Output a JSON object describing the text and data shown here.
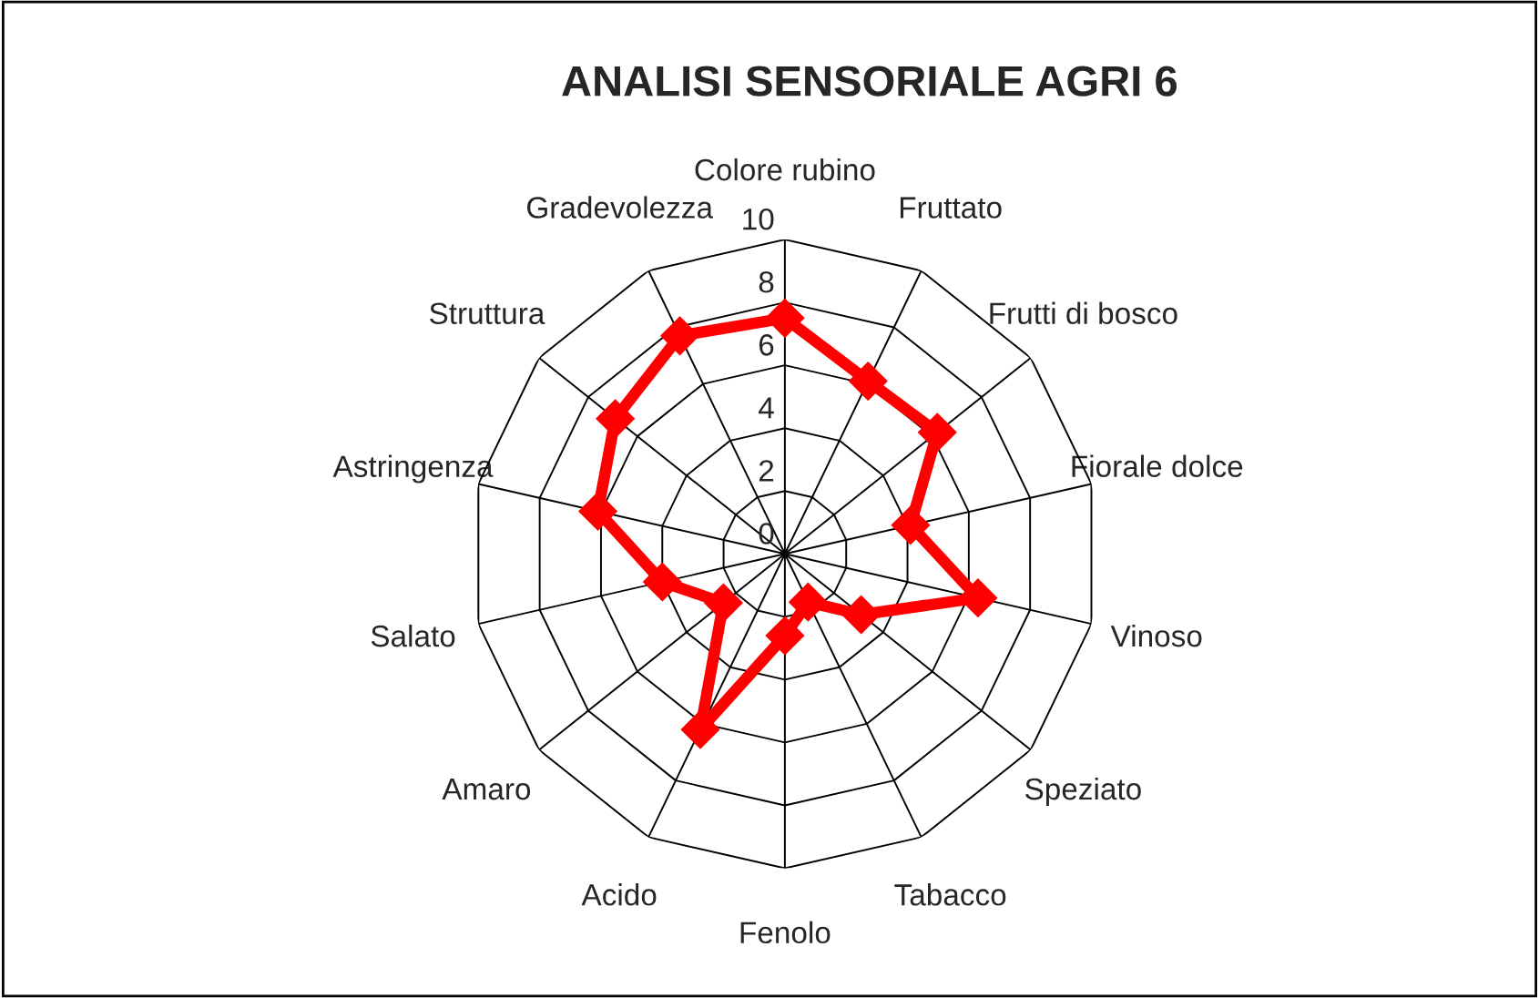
{
  "chart_data": {
    "type": "radar",
    "title": "ANALISI SENSORIALE AGRI 6",
    "categories": [
      "Colore rubino",
      "Fruttato",
      "Frutti di bosco",
      "Fiorale dolce",
      "Vinoso",
      "Speziato",
      "Tabacco",
      "Fenolo",
      "Acido",
      "Amaro",
      "Salato",
      "Astringenza",
      "Struttura",
      "Gradevolezza"
    ],
    "series": [
      {
        "color": "#ff0000",
        "values": [
          7.5,
          6.1,
          6.2,
          4.1,
          6.3,
          3.1,
          1.7,
          2.6,
          6.2,
          2.5,
          4.0,
          6.1,
          6.9,
          7.7
        ]
      }
    ],
    "ylim": [
      0,
      10
    ],
    "yticks": [
      0,
      2,
      4,
      6,
      8,
      10
    ],
    "grid": true,
    "marker": "diamond",
    "line_style": "solid"
  }
}
